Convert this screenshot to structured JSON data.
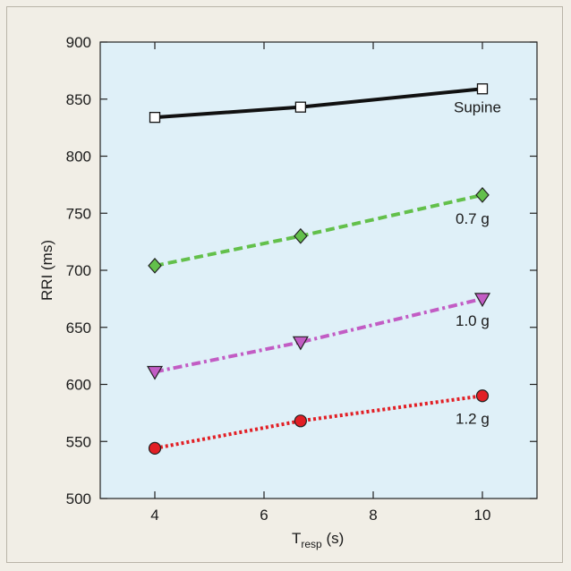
{
  "chart_data": {
    "type": "line",
    "xlabel_main": "T",
    "xlabel_sub": "resp",
    "xlabel_unit": " (s)",
    "ylabel": "RRI (ms)",
    "xlim": [
      3,
      11
    ],
    "ylim": [
      500,
      900
    ],
    "xticks": [
      4,
      6,
      8,
      10
    ],
    "yticks": [
      500,
      550,
      600,
      650,
      700,
      750,
      800,
      850,
      900
    ],
    "plot_background": "#dff0f8",
    "series": [
      {
        "name": "Supine",
        "color": "#111111",
        "dash": "solid",
        "marker": "square",
        "x": [
          4,
          6.67,
          10
        ],
        "y": [
          834,
          843,
          859
        ]
      },
      {
        "name": "0.7 g",
        "color": "#63c04b",
        "dash": "dashed",
        "marker": "diamond",
        "x": [
          4,
          6.67,
          10
        ],
        "y": [
          704,
          730,
          766
        ]
      },
      {
        "name": "1.0 g",
        "color": "#c25cc4",
        "dash": "dashdot",
        "marker": "triangle-down",
        "x": [
          4,
          6.67,
          10
        ],
        "y": [
          611,
          637,
          675
        ]
      },
      {
        "name": "1.2 g",
        "color": "#e21f25",
        "dash": "dotted",
        "marker": "circle",
        "x": [
          4,
          6.67,
          10
        ],
        "y": [
          544,
          568,
          590
        ]
      }
    ]
  }
}
